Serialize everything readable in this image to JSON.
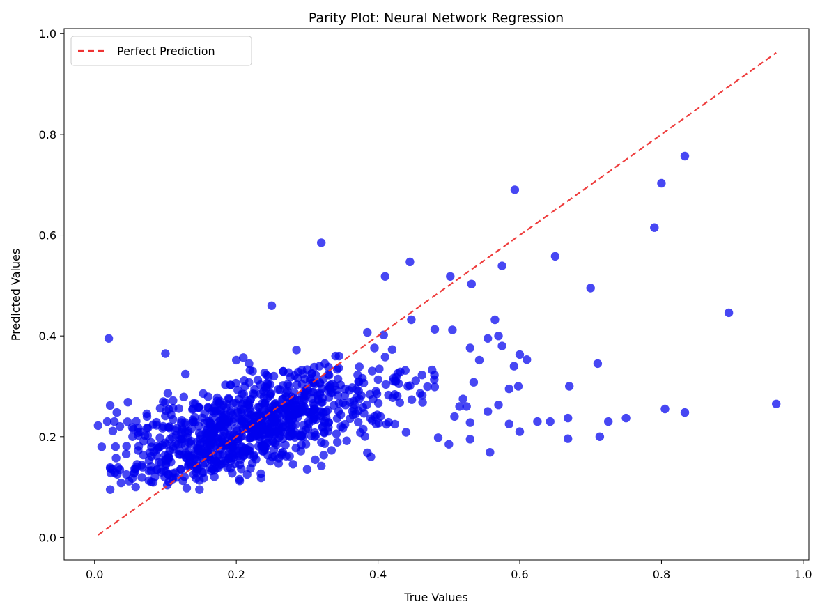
{
  "chart_data": {
    "type": "scatter",
    "title": "Parity Plot: Neural Network Regression",
    "xlabel": "True Values",
    "ylabel": "Predicted Values",
    "xlim": [
      -0.043,
      1.008
    ],
    "ylim": [
      -0.045,
      1.01
    ],
    "xticks": [
      "0.0",
      "0.2",
      "0.4",
      "0.6",
      "0.8",
      "1.0"
    ],
    "yticks": [
      "0.0",
      "0.2",
      "0.4",
      "0.6",
      "0.8",
      "1.0"
    ],
    "grid": false,
    "legend": {
      "position": "top-left",
      "entries": [
        "Perfect Prediction"
      ]
    },
    "colors": {
      "points": "#0000ee",
      "reference_line": "#ee3333"
    },
    "reference_line": {
      "name": "Perfect Prediction",
      "style": "dashed",
      "x": [
        0.005,
        0.962
      ],
      "y": [
        0.005,
        0.962
      ]
    },
    "series": [
      {
        "name": "",
        "points": [
          [
            0.02,
            0.395
          ],
          [
            0.1,
            0.365
          ],
          [
            0.25,
            0.46
          ],
          [
            0.32,
            0.585
          ],
          [
            0.41,
            0.518
          ],
          [
            0.445,
            0.547
          ],
          [
            0.502,
            0.518
          ],
          [
            0.532,
            0.503
          ],
          [
            0.575,
            0.539
          ],
          [
            0.593,
            0.69
          ],
          [
            0.65,
            0.558
          ],
          [
            0.7,
            0.495
          ],
          [
            0.79,
            0.615
          ],
          [
            0.8,
            0.703
          ],
          [
            0.833,
            0.757
          ],
          [
            0.895,
            0.446
          ],
          [
            0.962,
            0.265
          ],
          [
            0.71,
            0.345
          ],
          [
            0.67,
            0.3
          ],
          [
            0.713,
            0.2
          ],
          [
            0.668,
            0.196
          ],
          [
            0.668,
            0.237
          ],
          [
            0.725,
            0.23
          ],
          [
            0.75,
            0.237
          ],
          [
            0.805,
            0.255
          ],
          [
            0.833,
            0.248
          ],
          [
            0.625,
            0.23
          ],
          [
            0.643,
            0.23
          ],
          [
            0.6,
            0.21
          ],
          [
            0.585,
            0.225
          ],
          [
            0.558,
            0.169
          ],
          [
            0.555,
            0.25
          ],
          [
            0.53,
            0.228
          ],
          [
            0.53,
            0.195
          ],
          [
            0.565,
            0.432
          ],
          [
            0.57,
            0.4
          ],
          [
            0.6,
            0.363
          ],
          [
            0.61,
            0.353
          ],
          [
            0.592,
            0.34
          ],
          [
            0.575,
            0.38
          ],
          [
            0.555,
            0.395
          ],
          [
            0.543,
            0.352
          ],
          [
            0.53,
            0.376
          ],
          [
            0.505,
            0.412
          ],
          [
            0.48,
            0.413
          ],
          [
            0.447,
            0.432
          ],
          [
            0.598,
            0.3
          ],
          [
            0.585,
            0.295
          ],
          [
            0.57,
            0.263
          ],
          [
            0.535,
            0.308
          ],
          [
            0.52,
            0.275
          ],
          [
            0.515,
            0.26
          ],
          [
            0.5,
            0.185
          ],
          [
            0.485,
            0.198
          ],
          [
            0.508,
            0.24
          ],
          [
            0.525,
            0.26
          ],
          [
            0.005,
            0.222
          ],
          [
            0.01,
            0.18
          ],
          [
            0.018,
            0.23
          ],
          [
            0.022,
            0.262
          ],
          [
            0.028,
            0.23
          ],
          [
            0.025,
            0.135
          ],
          [
            0.022,
            0.095
          ],
          [
            0.385,
            0.407
          ],
          [
            0.408,
            0.402
          ],
          [
            0.395,
            0.376
          ],
          [
            0.42,
            0.373
          ],
          [
            0.41,
            0.358
          ],
          [
            0.39,
            0.16
          ],
          [
            0.385,
            0.168
          ],
          [
            0.2,
            0.352
          ],
          [
            0.21,
            0.357
          ],
          [
            0.218,
            0.345
          ],
          [
            0.223,
            0.33
          ],
          [
            0.285,
            0.372
          ],
          [
            0.34,
            0.36
          ],
          [
            0.345,
            0.36
          ],
          [
            0.31,
            0.338
          ],
          [
            0.3,
            0.333
          ],
          [
            0.325,
            0.345
          ],
          [
            0.148,
            0.095
          ],
          [
            0.13,
            0.098
          ],
          [
            0.235,
            0.118
          ],
          [
            0.3,
            0.135
          ],
          [
            0.32,
            0.142
          ],
          [
            0.058,
            0.1
          ],
          [
            0.045,
            0.125
          ]
        ]
      }
    ],
    "cloud": {
      "count": 920,
      "center_x": 0.215,
      "spread_x": 0.095,
      "center_y": 0.218,
      "slope": 0.38,
      "noise_y": 0.046,
      "seed": 7
    }
  }
}
